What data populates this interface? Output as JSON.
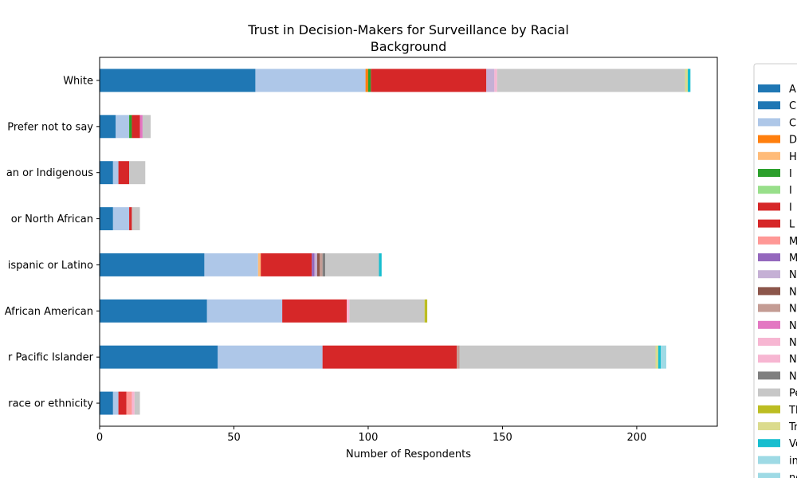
{
  "chart_data": {
    "type": "bar",
    "orientation": "horizontal",
    "stacked": true,
    "title": "Trust in Decision-Makers for Surveillance by Racial\nBackground",
    "xlabel": "Number of Respondents",
    "ylabel": "",
    "xlim": [
      0,
      230
    ],
    "xticks": [
      0,
      50,
      100,
      150,
      200
    ],
    "grid": false,
    "legend_position": "right",
    "categories": [
      "White",
      "Prefer not to say",
      "an or Indigenous",
      "or North African",
      "ispanic or Latino",
      "African American",
      "r Pacific Islander",
      "race or ethnicity"
    ],
    "series": [
      {
        "name": "A",
        "color": "#1f77b4",
        "values": [
          58,
          6,
          5,
          5,
          39,
          40,
          44,
          5
        ]
      },
      {
        "name": "C",
        "color": "#1f77b4",
        "values": [
          0,
          0,
          0,
          0,
          0,
          0,
          0,
          0
        ]
      },
      {
        "name": "C",
        "color": "#aec7e8",
        "values": [
          41,
          5,
          2,
          6,
          20,
          28,
          39,
          2
        ]
      },
      {
        "name": "D",
        "color": "#ff7f0e",
        "values": [
          1,
          0,
          0,
          0,
          0,
          0,
          0,
          0
        ]
      },
      {
        "name": "H",
        "color": "#ffbb78",
        "values": [
          0,
          0,
          0,
          0,
          1,
          0,
          0,
          0
        ]
      },
      {
        "name": "I",
        "color": "#2ca02c",
        "values": [
          1,
          1,
          0,
          0,
          0,
          0,
          0,
          0
        ]
      },
      {
        "name": "I",
        "color": "#98df8a",
        "values": [
          0,
          0,
          0,
          0,
          0,
          0,
          0,
          0
        ]
      },
      {
        "name": "I",
        "color": "#d62728",
        "values": [
          0,
          0,
          0,
          0,
          0,
          0,
          0,
          0
        ]
      },
      {
        "name": "L",
        "color": "#d62728",
        "values": [
          43,
          3,
          4,
          1,
          19,
          24,
          50,
          3
        ]
      },
      {
        "name": "M",
        "color": "#ff9896",
        "values": [
          0,
          0,
          0,
          0,
          0,
          0,
          0,
          2
        ]
      },
      {
        "name": "M",
        "color": "#9467bd",
        "values": [
          0,
          0,
          0,
          0,
          1,
          0,
          0,
          0
        ]
      },
      {
        "name": "N",
        "color": "#c5b0d5",
        "values": [
          3,
          0,
          0,
          0,
          1,
          0,
          0,
          0
        ]
      },
      {
        "name": "N",
        "color": "#8c564b",
        "values": [
          0,
          0,
          0,
          0,
          1,
          0,
          0,
          0
        ]
      },
      {
        "name": "N",
        "color": "#c49c94",
        "values": [
          0,
          0,
          0,
          0,
          1,
          0,
          1,
          0
        ]
      },
      {
        "name": "N",
        "color": "#e377c2",
        "values": [
          0,
          1,
          0,
          0,
          0,
          0,
          0,
          0
        ]
      },
      {
        "name": "N",
        "color": "#f7b6d2",
        "values": [
          1,
          0,
          0,
          0,
          0,
          1,
          0,
          1
        ]
      },
      {
        "name": "N",
        "color": "#f7b6d2",
        "values": [
          0,
          0,
          0,
          0,
          0,
          0,
          0,
          0
        ]
      },
      {
        "name": "N",
        "color": "#7f7f7f",
        "values": [
          0,
          0,
          0,
          0,
          1,
          0,
          0,
          0
        ]
      },
      {
        "name": "Pe",
        "color": "#c7c7c7",
        "values": [
          70,
          3,
          6,
          3,
          20,
          28,
          73,
          2
        ]
      },
      {
        "name": "Th",
        "color": "#bcbd22",
        "values": [
          0,
          0,
          0,
          0,
          0,
          1,
          0,
          0
        ]
      },
      {
        "name": "Tr",
        "color": "#dbdb8d",
        "values": [
          1,
          0,
          0,
          0,
          0,
          0,
          1,
          0
        ]
      },
      {
        "name": "Ve",
        "color": "#17becf",
        "values": [
          1,
          0,
          0,
          0,
          1,
          0,
          1,
          0
        ]
      },
      {
        "name": "in",
        "color": "#9edae5",
        "values": [
          0,
          0,
          0,
          0,
          0,
          0,
          2,
          0
        ]
      },
      {
        "name": "no",
        "color": "#9edae5",
        "values": [
          0,
          0,
          0,
          0,
          0,
          0,
          0,
          0
        ]
      }
    ]
  }
}
